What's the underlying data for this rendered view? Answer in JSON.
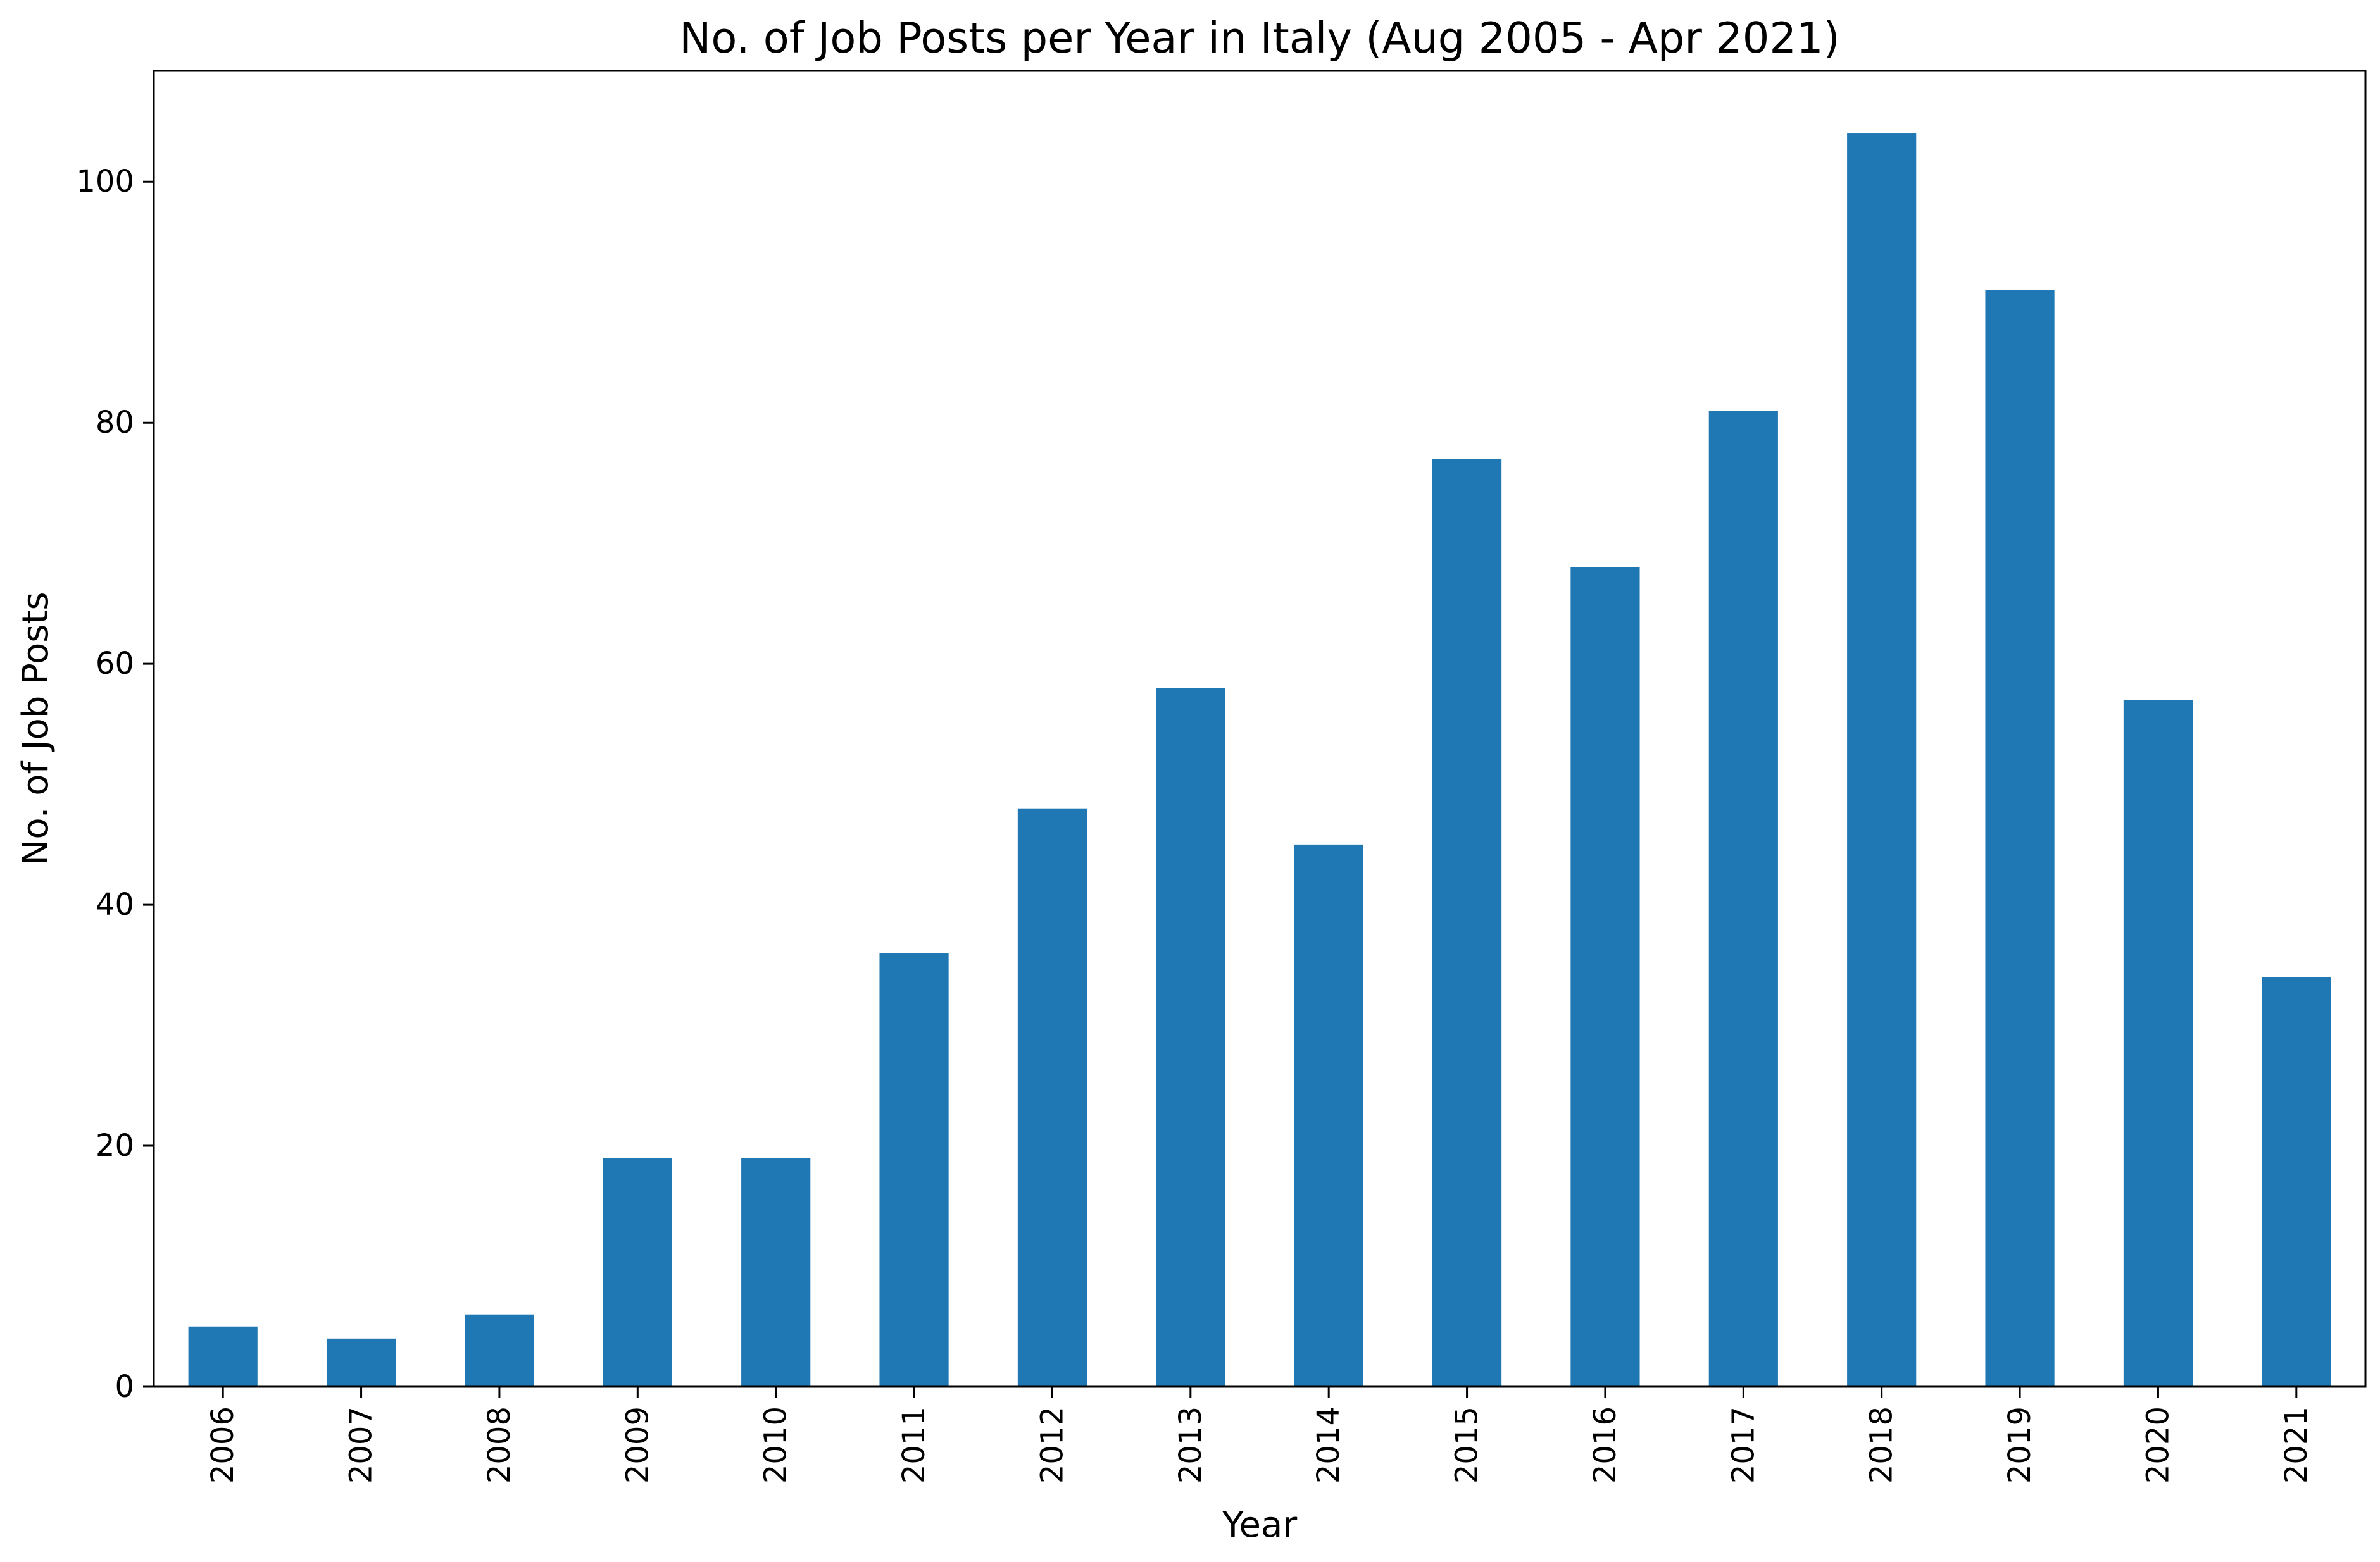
{
  "chart_data": {
    "type": "bar",
    "title": "No. of Job Posts per Year in Italy (Aug 2005 - Apr 2021)",
    "xlabel": "Year",
    "ylabel": "No. of Job Posts",
    "categories": [
      "2006",
      "2007",
      "2008",
      "2009",
      "2010",
      "2011",
      "2012",
      "2013",
      "2014",
      "2015",
      "2016",
      "2017",
      "2018",
      "2019",
      "2020",
      "2021"
    ],
    "values": [
      5,
      4,
      6,
      19,
      19,
      36,
      48,
      58,
      45,
      77,
      68,
      81,
      104,
      91,
      57,
      34
    ],
    "ylim": [
      0,
      109.2
    ],
    "yticks": [
      0,
      20,
      40,
      60,
      80,
      100
    ],
    "bar_color": "#1f77b4",
    "grid": false,
    "legend": "none"
  }
}
